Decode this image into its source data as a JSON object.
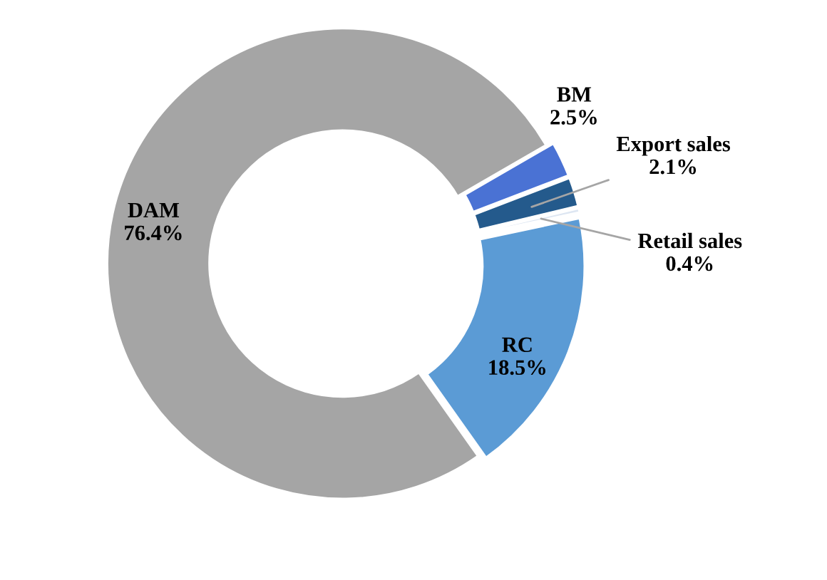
{
  "chart_data": {
    "type": "donut",
    "categories": [
      "BM",
      "Export sales",
      "Retail sales",
      "RC",
      "DAM"
    ],
    "values": [
      2.5,
      2.1,
      0.4,
      18.5,
      76.4
    ],
    "colors": [
      "#4a72d4",
      "#245a8c",
      "#dde6f2",
      "#5b9bd5",
      "#a5a5a5"
    ],
    "value_labels": [
      "2.5%",
      "2.1%",
      "0.4%",
      "18.5%",
      "76.4%"
    ]
  }
}
